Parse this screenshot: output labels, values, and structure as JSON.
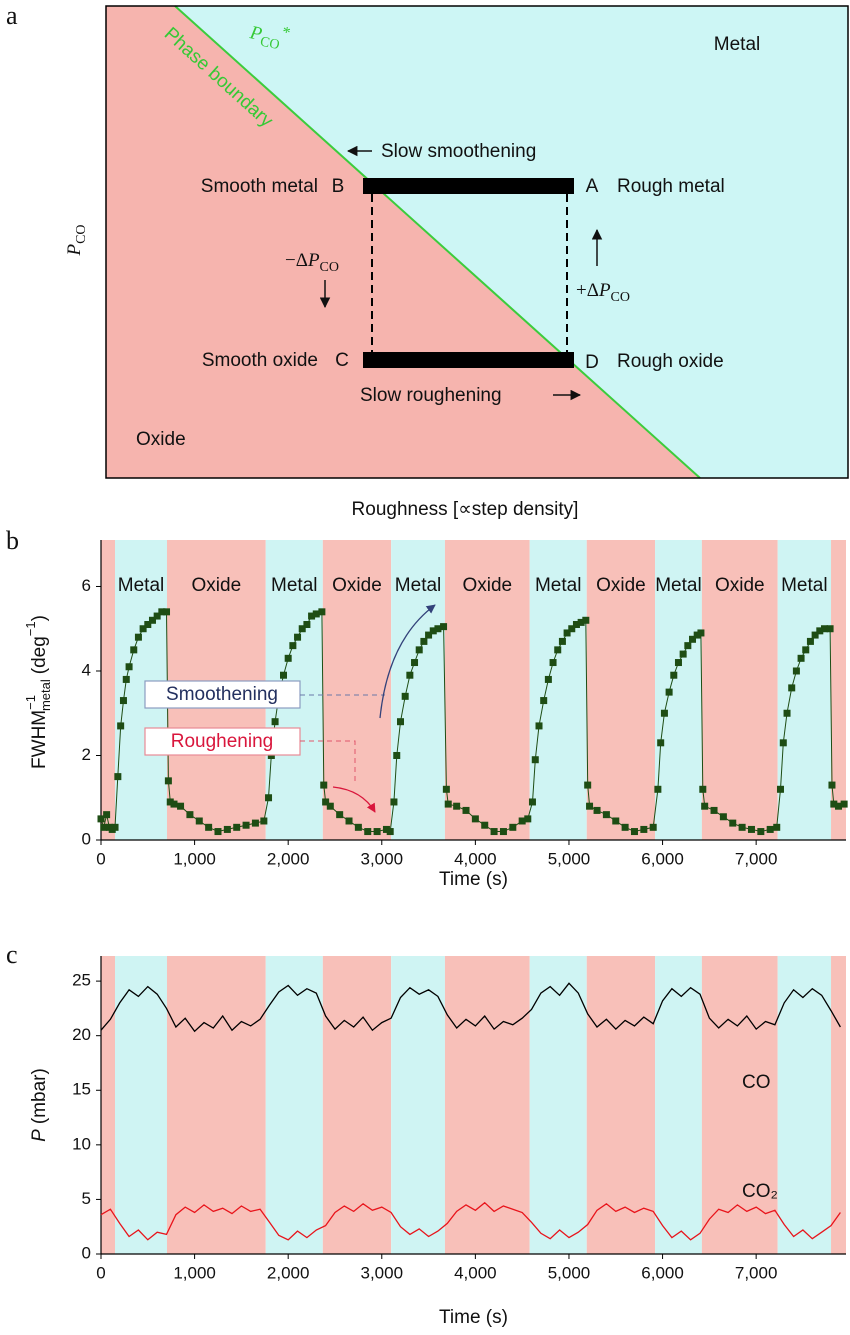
{
  "diagram": {
    "panel_label": "a",
    "region_labels": {
      "metal": "Metal",
      "oxide": "Oxide"
    },
    "boundary_label": "Phase boundary",
    "boundary_symbol": {
      "base": "P",
      "sub": "CO",
      "sup": "*"
    },
    "y_label": {
      "base": "P",
      "sub": "CO"
    },
    "x_label": "Roughness [∝step density]",
    "states": [
      {
        "label": "Smooth metal",
        "letter": "B"
      },
      {
        "label": "Rough metal",
        "letter": "A"
      },
      {
        "label": "Smooth oxide",
        "letter": "C"
      },
      {
        "label": "Rough oxide",
        "letter": "D"
      }
    ],
    "processes": [
      "Slow smoothening",
      "Slow roughening"
    ],
    "pressure_steps": [
      {
        "prefix": "−Δ",
        "base": "P",
        "sub": "CO"
      },
      {
        "prefix": "+Δ",
        "base": "P",
        "sub": "CO"
      }
    ]
  },
  "chart_data": [
    {
      "type": "line",
      "panel_label": "b",
      "markers": true,
      "y_label": {
        "base": "FWHM",
        "sup": "−1",
        "sub": "metal",
        "unit": "(deg",
        "unit_sup": "−1",
        "close": ")"
      },
      "x_label": "Time (s)",
      "xlim": [
        0,
        7960
      ],
      "ylim": [
        0,
        7.1
      ],
      "xticks": [
        0,
        {
          "value": 1000,
          "label": "1,000"
        },
        {
          "value": 2000,
          "label": "2,000"
        },
        {
          "value": 3000,
          "label": "3,000"
        },
        {
          "value": 4000,
          "label": "4,000"
        },
        {
          "value": 5000,
          "label": "5,000"
        },
        {
          "value": 6000,
          "label": "6,000"
        },
        {
          "value": 7000,
          "label": "7,000"
        }
      ],
      "yticks": [
        0,
        2,
        4,
        6
      ],
      "regions": [
        {
          "label": null,
          "start": 0,
          "end": 150,
          "color": "#f8c0b9"
        },
        {
          "label": "Metal",
          "start": 150,
          "end": 705,
          "color": "#cff4f3"
        },
        {
          "label": "Oxide",
          "start": 705,
          "end": 1760,
          "color": "#f8c0b9"
        },
        {
          "label": "Metal",
          "start": 1760,
          "end": 2370,
          "color": "#cff4f3"
        },
        {
          "label": "Oxide",
          "start": 2370,
          "end": 3100,
          "color": "#f8c0b9"
        },
        {
          "label": "Metal",
          "start": 3100,
          "end": 3675,
          "color": "#cff4f3"
        },
        {
          "label": "Oxide",
          "start": 3675,
          "end": 4580,
          "color": "#f8c0b9"
        },
        {
          "label": "Metal",
          "start": 4580,
          "end": 5190,
          "color": "#cff4f3"
        },
        {
          "label": "Oxide",
          "start": 5190,
          "end": 5920,
          "color": "#f8c0b9"
        },
        {
          "label": "Metal",
          "start": 5920,
          "end": 6420,
          "color": "#cff4f3"
        },
        {
          "label": "Oxide",
          "start": 6420,
          "end": 7230,
          "color": "#f8c0b9"
        },
        {
          "label": "Metal",
          "start": 7230,
          "end": 7800,
          "color": "#cff4f3"
        },
        {
          "label": null,
          "start": 7800,
          "end": 7960,
          "color": "#f8c0b9"
        }
      ],
      "annotations": [
        {
          "text": "Smoothening",
          "color": "#23305f"
        },
        {
          "text": "Roughening",
          "color": "#d9163c"
        }
      ],
      "x": [
        0,
        30,
        60,
        90,
        120,
        150,
        180,
        210,
        240,
        270,
        300,
        350,
        400,
        450,
        500,
        550,
        600,
        650,
        700,
        720,
        740,
        780,
        850,
        950,
        1050,
        1150,
        1250,
        1350,
        1450,
        1550,
        1650,
        1740,
        1790,
        1820,
        1860,
        1900,
        1950,
        2000,
        2050,
        2100,
        2150,
        2200,
        2250,
        2300,
        2360,
        2380,
        2400,
        2450,
        2550,
        2650,
        2750,
        2850,
        2950,
        3050,
        3090,
        3130,
        3160,
        3200,
        3250,
        3300,
        3350,
        3400,
        3450,
        3500,
        3550,
        3600,
        3660,
        3690,
        3710,
        3800,
        3900,
        4000,
        4100,
        4200,
        4300,
        4400,
        4500,
        4560,
        4610,
        4640,
        4680,
        4730,
        4780,
        4830,
        4880,
        4930,
        4980,
        5030,
        5080,
        5130,
        5180,
        5200,
        5220,
        5300,
        5400,
        5500,
        5600,
        5700,
        5800,
        5900,
        5950,
        5980,
        6020,
        6070,
        6120,
        6170,
        6220,
        6270,
        6320,
        6370,
        6410,
        6430,
        6450,
        6550,
        6650,
        6750,
        6850,
        6950,
        7050,
        7150,
        7220,
        7260,
        7290,
        7330,
        7380,
        7430,
        7480,
        7530,
        7580,
        7630,
        7680,
        7730,
        7790,
        7810,
        7830,
        7880,
        7940
      ],
      "series": [
        {
          "color": "#1e4d14",
          "values": [
            0.5,
            0.3,
            0.6,
            0.3,
            0.25,
            0.3,
            1.5,
            2.7,
            3.3,
            3.8,
            4.1,
            4.5,
            4.8,
            5.0,
            5.1,
            5.2,
            5.3,
            5.4,
            5.4,
            1.4,
            0.9,
            0.85,
            0.8,
            0.6,
            0.45,
            0.3,
            0.2,
            0.25,
            0.3,
            0.35,
            0.4,
            0.45,
            1.0,
            2.0,
            2.8,
            3.4,
            3.9,
            4.3,
            4.6,
            4.8,
            5.0,
            5.1,
            5.3,
            5.35,
            5.4,
            1.3,
            0.9,
            0.8,
            0.6,
            0.45,
            0.3,
            0.2,
            0.2,
            0.25,
            0.2,
            0.9,
            2.0,
            2.8,
            3.4,
            3.9,
            4.2,
            4.5,
            4.7,
            4.85,
            4.95,
            5.0,
            5.05,
            1.2,
            0.85,
            0.8,
            0.7,
            0.5,
            0.35,
            0.2,
            0.2,
            0.3,
            0.45,
            0.5,
            0.9,
            1.9,
            2.7,
            3.3,
            3.8,
            4.2,
            4.5,
            4.7,
            4.9,
            5.0,
            5.1,
            5.15,
            5.2,
            1.3,
            0.8,
            0.7,
            0.6,
            0.45,
            0.3,
            0.2,
            0.25,
            0.3,
            1.2,
            2.3,
            3.0,
            3.5,
            3.9,
            4.2,
            4.4,
            4.6,
            4.75,
            4.85,
            4.9,
            1.2,
            0.8,
            0.7,
            0.55,
            0.4,
            0.3,
            0.25,
            0.2,
            0.25,
            0.3,
            1.2,
            2.3,
            3.0,
            3.6,
            4.0,
            4.3,
            4.5,
            4.7,
            4.85,
            4.95,
            5.0,
            5.0,
            1.3,
            0.85,
            0.8,
            0.85
          ]
        }
      ]
    },
    {
      "type": "line",
      "panel_label": "c",
      "markers": false,
      "y_label": {
        "var": "P",
        "unit": "(mbar)"
      },
      "x_label": "Time (s)",
      "xlim": [
        0,
        7960
      ],
      "ylim": [
        0,
        27.3
      ],
      "xticks": [
        0,
        {
          "value": 1000,
          "label": "1,000"
        },
        {
          "value": 2000,
          "label": "2,000"
        },
        {
          "value": 3000,
          "label": "3,000"
        },
        {
          "value": 4000,
          "label": "4,000"
        },
        {
          "value": 5000,
          "label": "5,000"
        },
        {
          "value": 6000,
          "label": "6,000"
        },
        {
          "value": 7000,
          "label": "7,000"
        }
      ],
      "yticks": [
        0,
        5,
        10,
        15,
        20,
        25
      ],
      "regions": [
        {
          "start": 0,
          "end": 150,
          "color": "#f8c0b9"
        },
        {
          "start": 150,
          "end": 705,
          "color": "#cff4f3"
        },
        {
          "start": 705,
          "end": 1760,
          "color": "#f8c0b9"
        },
        {
          "start": 1760,
          "end": 2370,
          "color": "#cff4f3"
        },
        {
          "start": 2370,
          "end": 3100,
          "color": "#f8c0b9"
        },
        {
          "start": 3100,
          "end": 3675,
          "color": "#cff4f3"
        },
        {
          "start": 3675,
          "end": 4580,
          "color": "#f8c0b9"
        },
        {
          "start": 4580,
          "end": 5190,
          "color": "#cff4f3"
        },
        {
          "start": 5190,
          "end": 5920,
          "color": "#f8c0b9"
        },
        {
          "start": 5920,
          "end": 6420,
          "color": "#cff4f3"
        },
        {
          "start": 6420,
          "end": 7230,
          "color": "#f8c0b9"
        },
        {
          "start": 7230,
          "end": 7800,
          "color": "#cff4f3"
        },
        {
          "start": 7800,
          "end": 7960,
          "color": "#f8c0b9"
        }
      ],
      "x": [
        0,
        100,
        200,
        300,
        400,
        500,
        600,
        700,
        800,
        900,
        1000,
        1100,
        1200,
        1300,
        1400,
        1500,
        1600,
        1700,
        1800,
        1900,
        2000,
        2100,
        2200,
        2300,
        2400,
        2500,
        2600,
        2700,
        2800,
        2900,
        3000,
        3100,
        3200,
        3300,
        3400,
        3500,
        3600,
        3700,
        3800,
        3900,
        4000,
        4100,
        4200,
        4300,
        4400,
        4500,
        4600,
        4700,
        4800,
        4900,
        5000,
        5100,
        5200,
        5300,
        5400,
        5500,
        5600,
        5700,
        5800,
        5900,
        6000,
        6100,
        6200,
        6300,
        6400,
        6500,
        6600,
        6700,
        6800,
        6900,
        7000,
        7100,
        7200,
        7300,
        7400,
        7500,
        7600,
        7700,
        7800,
        7900
      ],
      "series": [
        {
          "name": "CO",
          "color": "#000000",
          "values": [
            20.5,
            21.5,
            23.0,
            24.2,
            23.6,
            24.5,
            23.8,
            22.5,
            20.8,
            21.6,
            20.4,
            21.2,
            20.7,
            21.8,
            20.5,
            21.3,
            20.9,
            21.5,
            22.8,
            24.0,
            24.6,
            23.7,
            24.3,
            23.9,
            21.8,
            20.6,
            21.4,
            20.8,
            21.7,
            20.5,
            21.2,
            21.6,
            23.5,
            24.4,
            23.8,
            24.2,
            23.6,
            21.9,
            20.7,
            21.5,
            20.9,
            21.8,
            20.6,
            21.3,
            21.0,
            21.6,
            22.4,
            23.9,
            24.5,
            23.7,
            24.8,
            23.9,
            22.0,
            20.8,
            21.5,
            20.6,
            21.4,
            20.9,
            21.7,
            21.1,
            23.2,
            24.3,
            23.6,
            24.4,
            23.8,
            21.6,
            20.7,
            21.5,
            20.9,
            21.8,
            20.6,
            21.3,
            21.0,
            23.0,
            24.2,
            23.5,
            24.3,
            23.7,
            22.3,
            20.8
          ]
        },
        {
          "name": "CO₂",
          "color": "#e8141b",
          "values": [
            3.6,
            4.1,
            2.8,
            1.6,
            2.2,
            1.3,
            2.0,
            1.8,
            3.6,
            4.3,
            3.8,
            4.5,
            3.9,
            4.2,
            3.7,
            4.4,
            3.9,
            4.1,
            2.9,
            1.7,
            1.3,
            2.1,
            1.5,
            2.2,
            2.6,
            3.8,
            4.4,
            3.9,
            4.6,
            4.0,
            4.3,
            3.8,
            2.5,
            1.8,
            2.3,
            1.6,
            2.1,
            2.8,
            3.9,
            4.5,
            4.0,
            4.7,
            3.9,
            4.4,
            4.1,
            3.8,
            2.9,
            1.9,
            1.4,
            2.2,
            1.5,
            2.0,
            2.7,
            4.0,
            4.6,
            3.9,
            4.3,
            3.8,
            4.2,
            3.9,
            2.6,
            1.5,
            2.1,
            1.3,
            1.9,
            3.2,
            4.1,
            3.8,
            4.5,
            3.9,
            4.3,
            3.7,
            4.0,
            2.7,
            1.6,
            2.2,
            1.4,
            2.0,
            2.6,
            3.8
          ]
        }
      ]
    }
  ]
}
